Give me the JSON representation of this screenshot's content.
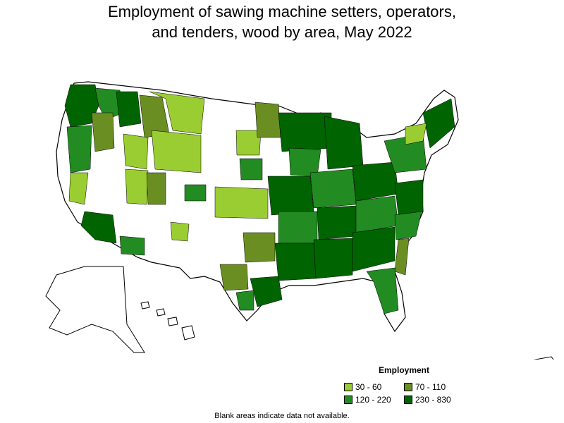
{
  "title_line1": "Employment of sawing machine setters, operators,",
  "title_line2": "and tenders, wood by area, May 2022",
  "legend": {
    "title": "Employment",
    "items": [
      {
        "label": "30 - 60",
        "color": "#9acd32"
      },
      {
        "label": "70 - 110",
        "color": "#6b8e23"
      },
      {
        "label": "120 - 220",
        "color": "#228b22"
      },
      {
        "label": "230 - 830",
        "color": "#006400"
      }
    ]
  },
  "footnote": "Blank areas indicate data not available."
}
